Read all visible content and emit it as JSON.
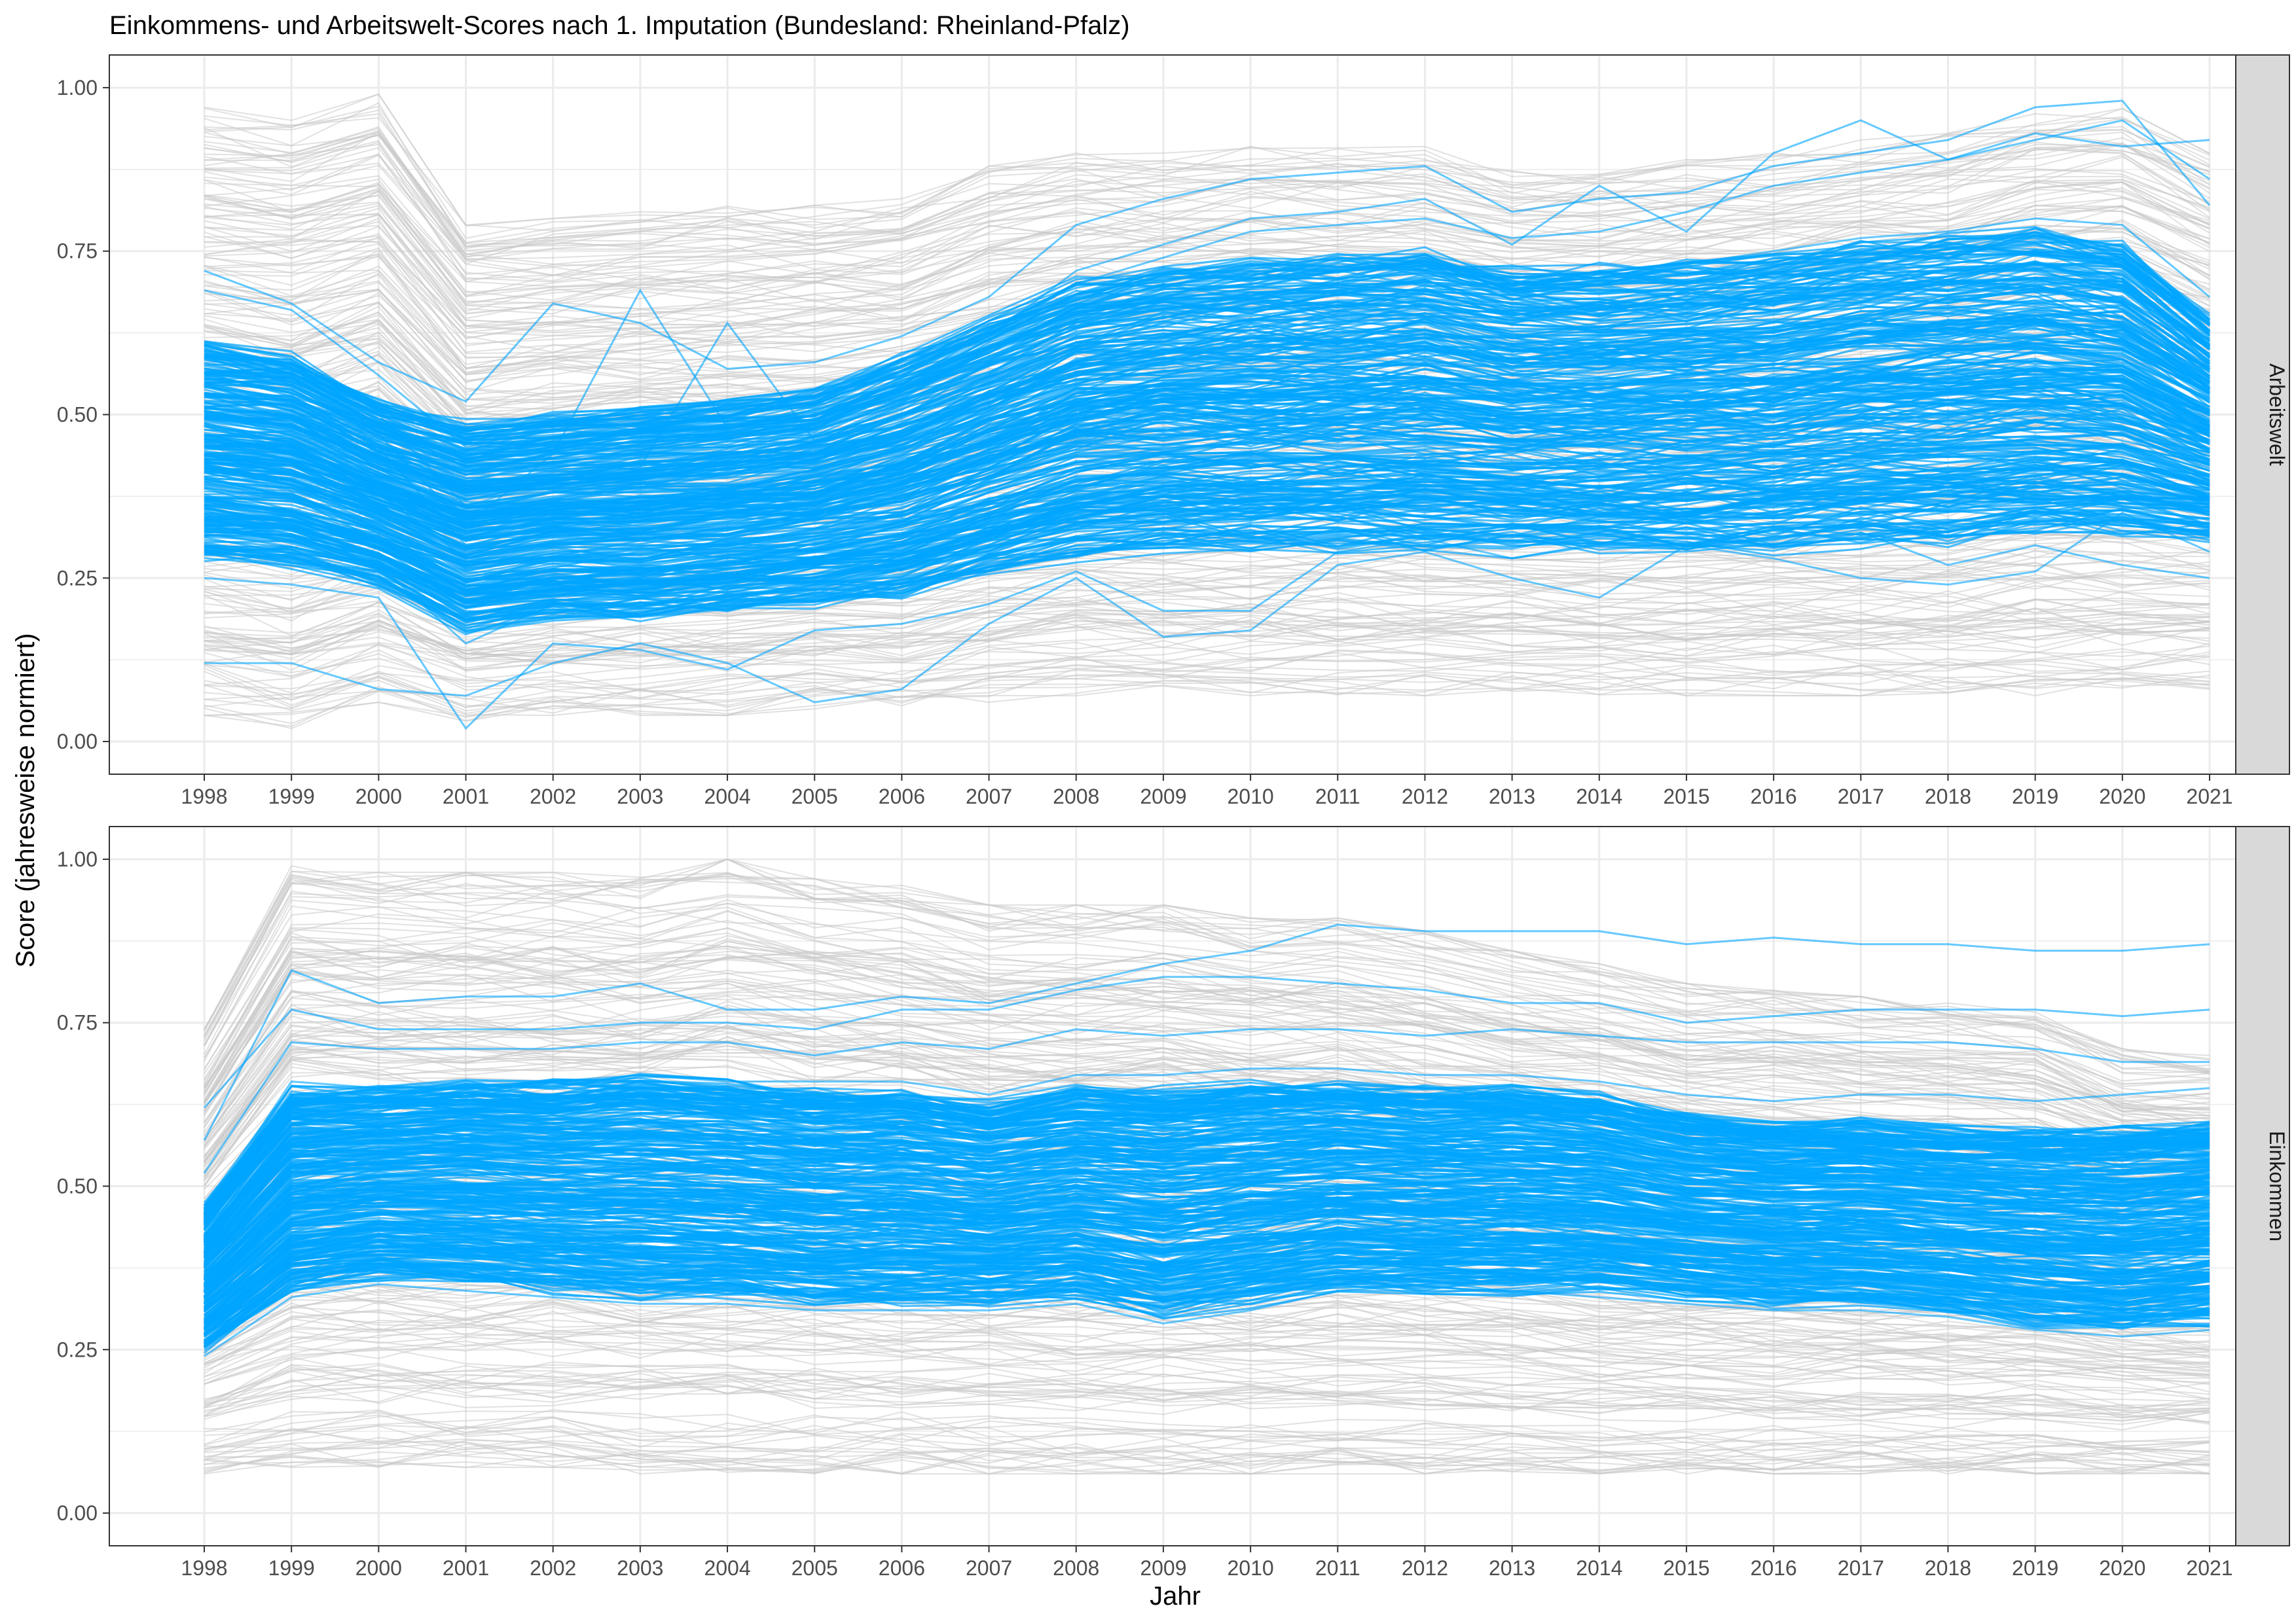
{
  "chart_data": {
    "type": "line",
    "title": "Einkommens- und Arbeitswelt-Scores nach 1. Imputation (Bundesland: Rheinland-Pfalz)",
    "xlabel": "Jahr",
    "ylabel": "Score (jahresweise normiert)",
    "x": [
      1998,
      1999,
      2000,
      2001,
      2002,
      2003,
      2004,
      2005,
      2006,
      2007,
      2008,
      2009,
      2010,
      2011,
      2012,
      2013,
      2014,
      2015,
      2016,
      2017,
      2018,
      2019,
      2020,
      2021
    ],
    "x_tick_labels": [
      "1998",
      "1999",
      "2000",
      "2001",
      "2002",
      "2003",
      "2004",
      "2005",
      "2006",
      "2007",
      "2008",
      "2009",
      "2010",
      "2011",
      "2012",
      "2013",
      "2014",
      "2015",
      "2016",
      "2017",
      "2018",
      "2019",
      "2020",
      "2021"
    ],
    "ylim": [
      0,
      1
    ],
    "y_ticks": [
      0,
      0.25,
      0.5,
      0.75,
      1
    ],
    "y_tick_labels": [
      "0.00",
      "0.25",
      "0.50",
      "0.75",
      "1.00"
    ],
    "grid": true,
    "colors": {
      "background_lines": "#c8c8c8",
      "highlight_lines": "#00a5ff",
      "strip_fill": "#d9d9d9",
      "grid": "#ebebeb"
    },
    "panels": [
      {
        "strip": "Arbeitswelt",
        "background_band": {
          "upper": [
            0.97,
            0.95,
            0.99,
            0.79,
            0.8,
            0.81,
            0.82,
            0.82,
            0.83,
            0.88,
            0.9,
            0.9,
            0.91,
            0.91,
            0.91,
            0.88,
            0.88,
            0.89,
            0.9,
            0.92,
            0.93,
            0.96,
            0.97,
            0.9
          ],
          "lower": [
            0.04,
            0.02,
            0.06,
            0.03,
            0.04,
            0.04,
            0.04,
            0.05,
            0.05,
            0.06,
            0.07,
            0.07,
            0.07,
            0.07,
            0.07,
            0.07,
            0.07,
            0.07,
            0.07,
            0.07,
            0.07,
            0.07,
            0.07,
            0.08
          ]
        },
        "highlight_band": {
          "upper": [
            0.62,
            0.6,
            0.53,
            0.5,
            0.51,
            0.52,
            0.53,
            0.55,
            0.6,
            0.66,
            0.72,
            0.74,
            0.75,
            0.76,
            0.77,
            0.74,
            0.74,
            0.75,
            0.76,
            0.78,
            0.79,
            0.8,
            0.78,
            0.66
          ],
          "lower": [
            0.27,
            0.26,
            0.23,
            0.16,
            0.18,
            0.18,
            0.19,
            0.2,
            0.21,
            0.24,
            0.27,
            0.28,
            0.28,
            0.28,
            0.28,
            0.28,
            0.28,
            0.28,
            0.28,
            0.29,
            0.29,
            0.3,
            0.3,
            0.3
          ]
        },
        "highlight_series": [
          {
            "values": [
              0.69,
              0.66,
              0.56,
              0.45,
              0.48,
              0.49,
              0.5,
              0.52,
              0.56,
              0.62,
              0.7,
              0.74,
              0.78,
              0.79,
              0.8,
              0.77,
              0.78,
              0.81,
              0.85,
              0.87,
              0.89,
              0.92,
              0.95,
              0.86
            ]
          },
          {
            "values": [
              0.72,
              0.67,
              0.58,
              0.52,
              0.67,
              0.64,
              0.57,
              0.58,
              0.62,
              0.68,
              0.79,
              0.83,
              0.86,
              0.87,
              0.88,
              0.81,
              0.83,
              0.84,
              0.88,
              0.9,
              0.92,
              0.97,
              0.98,
              0.82
            ]
          },
          {
            "values": [
              0.53,
              0.52,
              0.47,
              0.33,
              0.44,
              0.69,
              0.48,
              0.5,
              0.55,
              0.62,
              0.72,
              0.76,
              0.8,
              0.81,
              0.83,
              0.76,
              0.85,
              0.78,
              0.9,
              0.95,
              0.89,
              0.93,
              0.91,
              0.92
            ]
          },
          {
            "values": [
              0.5,
              0.49,
              0.45,
              0.3,
              0.33,
              0.35,
              0.37,
              0.4,
              0.44,
              0.5,
              0.58,
              0.62,
              0.64,
              0.65,
              0.66,
              0.64,
              0.66,
              0.68,
              0.7,
              0.72,
              0.73,
              0.75,
              0.74,
              0.64
            ]
          },
          {
            "values": [
              0.42,
              0.41,
              0.38,
              0.28,
              0.3,
              0.32,
              0.33,
              0.35,
              0.38,
              0.43,
              0.5,
              0.54,
              0.56,
              0.57,
              0.58,
              0.56,
              0.57,
              0.59,
              0.61,
              0.63,
              0.64,
              0.66,
              0.65,
              0.55
            ]
          },
          {
            "values": [
              0.3,
              0.29,
              0.27,
              0.15,
              0.21,
              0.22,
              0.2,
              0.24,
              0.27,
              0.31,
              0.37,
              0.39,
              0.41,
              0.41,
              0.42,
              0.4,
              0.41,
              0.42,
              0.43,
              0.45,
              0.46,
              0.48,
              0.47,
              0.4
            ]
          },
          {
            "values": [
              0.12,
              0.12,
              0.08,
              0.07,
              0.12,
              0.15,
              0.12,
              0.06,
              0.08,
              0.18,
              0.25,
              0.16,
              0.17,
              0.27,
              0.29,
              0.25,
              0.22,
              0.3,
              0.28,
              0.25,
              0.24,
              0.26,
              0.35,
              0.29
            ]
          },
          {
            "values": [
              0.25,
              0.24,
              0.22,
              0.02,
              0.15,
              0.14,
              0.11,
              0.17,
              0.18,
              0.21,
              0.26,
              0.2,
              0.2,
              0.29,
              0.31,
              0.28,
              0.3,
              0.31,
              0.3,
              0.32,
              0.27,
              0.3,
              0.27,
              0.25
            ]
          },
          {
            "values": [
              0.58,
              0.56,
              0.5,
              0.36,
              0.4,
              0.42,
              0.64,
              0.46,
              0.5,
              0.56,
              0.64,
              0.68,
              0.7,
              0.72,
              0.73,
              0.7,
              0.71,
              0.73,
              0.75,
              0.77,
              0.78,
              0.8,
              0.79,
              0.68
            ]
          }
        ]
      },
      {
        "strip": "Einkommen",
        "background_band": {
          "upper": [
            0.74,
            0.99,
            0.98,
            0.98,
            0.98,
            0.98,
            1.0,
            0.97,
            0.96,
            0.93,
            0.93,
            0.93,
            0.91,
            0.91,
            0.89,
            0.86,
            0.84,
            0.81,
            0.8,
            0.79,
            0.78,
            0.77,
            0.71,
            0.7
          ],
          "lower": [
            0.06,
            0.07,
            0.07,
            0.07,
            0.07,
            0.06,
            0.06,
            0.06,
            0.06,
            0.06,
            0.06,
            0.06,
            0.06,
            0.06,
            0.06,
            0.06,
            0.06,
            0.06,
            0.06,
            0.06,
            0.06,
            0.06,
            0.06,
            0.06
          ]
        },
        "highlight_band": {
          "upper": [
            0.48,
            0.66,
            0.66,
            0.67,
            0.67,
            0.68,
            0.67,
            0.66,
            0.66,
            0.64,
            0.66,
            0.66,
            0.67,
            0.67,
            0.66,
            0.66,
            0.65,
            0.62,
            0.61,
            0.61,
            0.6,
            0.6,
            0.6,
            0.61
          ],
          "lower": [
            0.24,
            0.33,
            0.35,
            0.34,
            0.33,
            0.32,
            0.32,
            0.31,
            0.31,
            0.31,
            0.32,
            0.29,
            0.31,
            0.33,
            0.33,
            0.33,
            0.33,
            0.32,
            0.31,
            0.31,
            0.3,
            0.28,
            0.27,
            0.28
          ]
        },
        "highlight_series": [
          {
            "values": [
              0.57,
              0.83,
              0.78,
              0.79,
              0.79,
              0.81,
              0.77,
              0.77,
              0.79,
              0.78,
              0.81,
              0.84,
              0.86,
              0.9,
              0.89,
              0.89,
              0.89,
              0.87,
              0.88,
              0.87,
              0.87,
              0.86,
              0.86,
              0.87
            ]
          },
          {
            "values": [
              0.62,
              0.77,
              0.74,
              0.74,
              0.74,
              0.75,
              0.75,
              0.74,
              0.77,
              0.77,
              0.8,
              0.82,
              0.82,
              0.81,
              0.8,
              0.78,
              0.78,
              0.75,
              0.76,
              0.77,
              0.77,
              0.77,
              0.76,
              0.77
            ]
          },
          {
            "values": [
              0.52,
              0.72,
              0.71,
              0.71,
              0.71,
              0.72,
              0.72,
              0.7,
              0.72,
              0.71,
              0.74,
              0.73,
              0.74,
              0.74,
              0.73,
              0.74,
              0.73,
              0.72,
              0.72,
              0.72,
              0.72,
              0.71,
              0.69,
              0.69
            ]
          },
          {
            "values": [
              0.46,
              0.66,
              0.65,
              0.66,
              0.66,
              0.67,
              0.66,
              0.66,
              0.66,
              0.64,
              0.67,
              0.67,
              0.68,
              0.68,
              0.67,
              0.67,
              0.66,
              0.64,
              0.63,
              0.64,
              0.64,
              0.63,
              0.64,
              0.65
            ]
          },
          {
            "values": [
              0.4,
              0.58,
              0.58,
              0.59,
              0.59,
              0.6,
              0.59,
              0.58,
              0.58,
              0.57,
              0.59,
              0.58,
              0.59,
              0.6,
              0.59,
              0.59,
              0.58,
              0.56,
              0.55,
              0.55,
              0.55,
              0.54,
              0.54,
              0.55
            ]
          },
          {
            "values": [
              0.33,
              0.48,
              0.49,
              0.49,
              0.48,
              0.48,
              0.47,
              0.47,
              0.47,
              0.46,
              0.47,
              0.46,
              0.47,
              0.48,
              0.47,
              0.47,
              0.46,
              0.44,
              0.43,
              0.43,
              0.43,
              0.42,
              0.42,
              0.43
            ]
          },
          {
            "values": [
              0.29,
              0.42,
              0.44,
              0.44,
              0.43,
              0.43,
              0.42,
              0.42,
              0.42,
              0.41,
              0.42,
              0.41,
              0.42,
              0.43,
              0.42,
              0.42,
              0.41,
              0.4,
              0.39,
              0.39,
              0.38,
              0.37,
              0.37,
              0.38
            ]
          },
          {
            "values": [
              0.27,
              0.38,
              0.4,
              0.4,
              0.39,
              0.39,
              0.38,
              0.38,
              0.38,
              0.37,
              0.38,
              0.36,
              0.37,
              0.39,
              0.38,
              0.38,
              0.37,
              0.36,
              0.35,
              0.35,
              0.34,
              0.33,
              0.33,
              0.34
            ]
          },
          {
            "values": [
              0.24,
              0.33,
              0.35,
              0.34,
              0.33,
              0.32,
              0.32,
              0.31,
              0.31,
              0.31,
              0.32,
              0.29,
              0.31,
              0.34,
              0.34,
              0.34,
              0.33,
              0.32,
              0.31,
              0.31,
              0.3,
              0.28,
              0.27,
              0.28
            ]
          }
        ]
      }
    ]
  }
}
